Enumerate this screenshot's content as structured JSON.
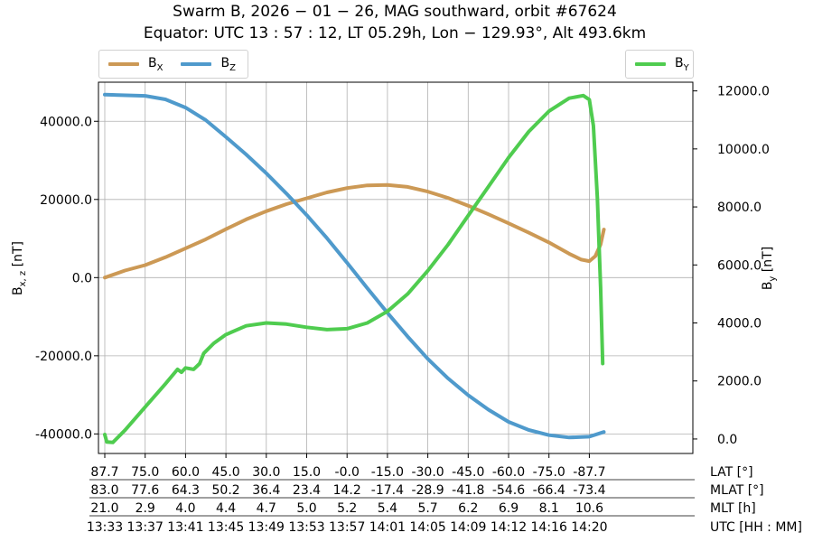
{
  "title": {
    "line1": "Swarm B,  2026 − 01 − 26,  MAG southward,  orbit #67624",
    "line2": "Equator:  UTC 13 : 57 : 12,  LT 05.29h,  Lon  − 129.93°,  Alt 493.6km"
  },
  "legend_left": [
    {
      "label": "B",
      "sub": "X",
      "color": "#CC9955"
    },
    {
      "label": "B",
      "sub": "Z",
      "color": "#4F9ACC"
    }
  ],
  "legend_right": [
    {
      "label": "B",
      "sub": "Y",
      "color": "#4FCC4F"
    }
  ],
  "chart_data": {
    "type": "line",
    "title": "Swarm B,  2026 − 01 − 26,  MAG southward,  orbit #67624",
    "ylabel_left": "B",
    "ylabel_left_sub": "x, z",
    "ylabel_left_unit": "[nT]",
    "ylabel_right": "B",
    "ylabel_right_sub": "y",
    "ylabel_right_unit": "[nT]",
    "x_time_range": [
      "13:33",
      "14:20"
    ],
    "ylim_left": [
      -45000,
      50000
    ],
    "ylim_right": [
      -500,
      12300
    ],
    "yticks_left": [
      -40000,
      -20000,
      0,
      20000,
      40000
    ],
    "yticks_left_labels": [
      "-40000.0",
      "-20000.0",
      "0.0",
      "20000.0",
      "40000.0"
    ],
    "yticks_right": [
      0,
      2000,
      4000,
      6000,
      8000,
      10000,
      12000
    ],
    "yticks_right_labels": [
      "0.0",
      "2000.0",
      "4000.0",
      "6000.0",
      "8000.0",
      "10000.0",
      "12000.0"
    ],
    "grid": true,
    "legend_placement": [
      "top-left (outside)",
      "top-right (outside)"
    ],
    "x_tick_rows": {
      "lat": [
        "87.7",
        "75.0",
        "60.0",
        "45.0",
        "30.0",
        "15.0",
        "-0.0",
        "-15.0",
        "-30.0",
        "-45.0",
        "-60.0",
        "-75.0",
        "-87.7"
      ],
      "mlat": [
        "83.0",
        "77.6",
        "64.3",
        "50.2",
        "36.4",
        "23.4",
        "14.2",
        "-17.4",
        "-28.9",
        "-41.8",
        "-54.6",
        "-66.4",
        "-73.4"
      ],
      "mlt": [
        "21.0",
        "2.9",
        "4.0",
        "4.4",
        "4.7",
        "5.0",
        "5.2",
        "5.4",
        "5.7",
        "6.2",
        "6.9",
        "8.1",
        "10.6"
      ],
      "utc": [
        "13:33",
        "13:37",
        "13:41",
        "13:45",
        "13:49",
        "13:53",
        "13:57",
        "14:01",
        "14:05",
        "14:09",
        "14:12",
        "14:16",
        "14:20"
      ]
    },
    "x_row_labels": [
      "LAT [°]",
      "MLAT [°]",
      "MLT [h]",
      "UTC [HH : MM]"
    ],
    "series": [
      {
        "name": "BX",
        "axis": "left",
        "color": "#CC9955",
        "points": [
          [
            0,
            0
          ],
          [
            0.5,
            1800
          ],
          [
            1,
            3200
          ],
          [
            1.5,
            5200
          ],
          [
            2,
            7500
          ],
          [
            2.5,
            9800
          ],
          [
            3,
            12400
          ],
          [
            3.5,
            14900
          ],
          [
            4,
            17000
          ],
          [
            4.5,
            18800
          ],
          [
            5,
            20300
          ],
          [
            5.5,
            21800
          ],
          [
            6,
            22900
          ],
          [
            6.5,
            23600
          ],
          [
            7,
            23700
          ],
          [
            7.5,
            23200
          ],
          [
            8,
            22000
          ],
          [
            8.5,
            20400
          ],
          [
            9,
            18400
          ],
          [
            9.5,
            16200
          ],
          [
            10,
            13900
          ],
          [
            10.5,
            11500
          ],
          [
            11,
            9000
          ],
          [
            11.5,
            6100
          ],
          [
            11.8,
            4600
          ],
          [
            12.0,
            4200
          ],
          [
            12.15,
            5500
          ],
          [
            12.28,
            8500
          ],
          [
            12.36,
            12300
          ]
        ]
      },
      {
        "name": "BZ",
        "axis": "left",
        "color": "#4F9ACC",
        "points": [
          [
            0,
            46800
          ],
          [
            1,
            46500
          ],
          [
            1.5,
            45600
          ],
          [
            2,
            43500
          ],
          [
            2.5,
            40300
          ],
          [
            3,
            36000
          ],
          [
            3.5,
            31500
          ],
          [
            4,
            26700
          ],
          [
            4.5,
            21500
          ],
          [
            5,
            16000
          ],
          [
            5.5,
            10100
          ],
          [
            6,
            3800
          ],
          [
            6.5,
            -2700
          ],
          [
            7,
            -9000
          ],
          [
            7.5,
            -15100
          ],
          [
            8,
            -20800
          ],
          [
            8.5,
            -25800
          ],
          [
            9,
            -30100
          ],
          [
            9.5,
            -33800
          ],
          [
            10,
            -36900
          ],
          [
            10.5,
            -39000
          ],
          [
            11,
            -40300
          ],
          [
            11.5,
            -40900
          ],
          [
            12,
            -40700
          ],
          [
            12.36,
            -39500
          ]
        ]
      },
      {
        "name": "BY",
        "axis": "right",
        "color": "#4FCC4F",
        "points": [
          [
            0,
            150
          ],
          [
            0.05,
            -100
          ],
          [
            0.2,
            -120
          ],
          [
            0.5,
            300
          ],
          [
            1,
            1100
          ],
          [
            1.5,
            1900
          ],
          [
            1.8,
            2400
          ],
          [
            1.9,
            2300
          ],
          [
            2,
            2450
          ],
          [
            2.2,
            2400
          ],
          [
            2.35,
            2600
          ],
          [
            2.45,
            2950
          ],
          [
            2.7,
            3300
          ],
          [
            3,
            3600
          ],
          [
            3.5,
            3900
          ],
          [
            4,
            4000
          ],
          [
            4.5,
            3960
          ],
          [
            5,
            3850
          ],
          [
            5.5,
            3770
          ],
          [
            6,
            3800
          ],
          [
            6.5,
            4000
          ],
          [
            7,
            4400
          ],
          [
            7.5,
            5000
          ],
          [
            8,
            5800
          ],
          [
            8.5,
            6700
          ],
          [
            9,
            7700
          ],
          [
            9.5,
            8700
          ],
          [
            10,
            9700
          ],
          [
            10.5,
            10600
          ],
          [
            11,
            11300
          ],
          [
            11.5,
            11750
          ],
          [
            11.85,
            11840
          ],
          [
            12.0,
            11700
          ],
          [
            12.1,
            10800
          ],
          [
            12.2,
            8300
          ],
          [
            12.28,
            5200
          ],
          [
            12.33,
            2600
          ]
        ]
      }
    ]
  }
}
